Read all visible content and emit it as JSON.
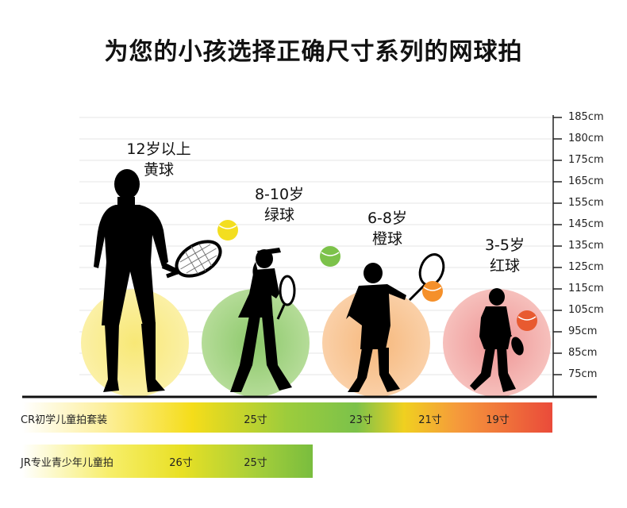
{
  "title": "为您的小孩选择正确尺寸系列的网球拍",
  "groups": [
    {
      "age": "12岁以上",
      "ball": "黄球"
    },
    {
      "age": "8-10岁",
      "ball": "绿球"
    },
    {
      "age": "6-8岁",
      "ball": "橙球"
    },
    {
      "age": "3-5岁",
      "ball": "红球"
    }
  ],
  "height_scale": [
    "185cm",
    "180cm",
    "175cm",
    "165cm",
    "155cm",
    "145cm",
    "135cm",
    "125cm",
    "115cm",
    "105cm",
    "95cm",
    "85cm",
    "75cm"
  ],
  "bars": [
    {
      "label": "CR初学儿童拍套装",
      "sizes": [
        "25寸",
        "23寸",
        "21寸",
        "19寸"
      ]
    },
    {
      "label": "JR专业青少年儿童拍",
      "sizes": [
        "26寸",
        "25寸"
      ]
    }
  ],
  "colors": {
    "yellow": "#f7e04a",
    "green": "#7cc24a",
    "orange": "#f59a3b",
    "red": "#ea4b3a"
  }
}
